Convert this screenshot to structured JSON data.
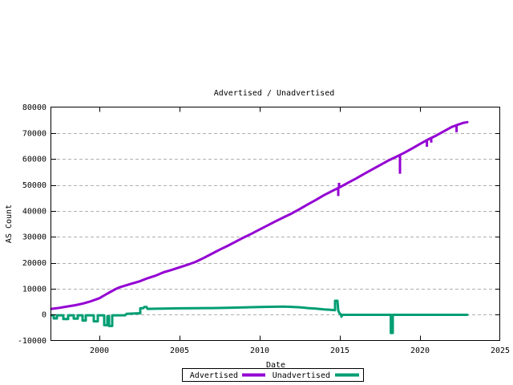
{
  "chart_data": {
    "type": "line",
    "title": "Advertised / Unadvertised",
    "xlabel": "Date",
    "ylabel": "AS Count",
    "xlim": [
      1997,
      2025
    ],
    "ylim": [
      -10000,
      80000
    ],
    "grid": "horizontal-dashed",
    "grid_color": "#b0b0b0",
    "border_color": "#000000",
    "legend_position": "bottom-center",
    "x_ticks": [
      {
        "value": 2000,
        "label": "2000"
      },
      {
        "value": 2005,
        "label": "2005"
      },
      {
        "value": 2010,
        "label": "2010"
      },
      {
        "value": 2015,
        "label": "2015"
      },
      {
        "value": 2020,
        "label": "2020"
      },
      {
        "value": 2025,
        "label": "2025"
      }
    ],
    "y_ticks": [
      {
        "value": -10000,
        "label": "-10000"
      },
      {
        "value": 0,
        "label": "0"
      },
      {
        "value": 10000,
        "label": "10000"
      },
      {
        "value": 20000,
        "label": "20000"
      },
      {
        "value": 30000,
        "label": "30000"
      },
      {
        "value": 40000,
        "label": "40000"
      },
      {
        "value": 50000,
        "label": "50000"
      },
      {
        "value": 60000,
        "label": "60000"
      },
      {
        "value": 70000,
        "label": "70000"
      },
      {
        "value": 80000,
        "label": "80000"
      }
    ],
    "series": [
      {
        "name": "Unadvertised",
        "color": "#009e73",
        "points": [
          [
            1997.0,
            -300
          ],
          [
            1997.15,
            -300
          ],
          [
            1997.15,
            -1500
          ],
          [
            1997.35,
            -1500
          ],
          [
            1997.35,
            -300
          ],
          [
            1997.75,
            -300
          ],
          [
            1997.75,
            -1700
          ],
          [
            1998.05,
            -1700
          ],
          [
            1998.05,
            -300
          ],
          [
            1998.4,
            -300
          ],
          [
            1998.4,
            -1600
          ],
          [
            1998.65,
            -1600
          ],
          [
            1998.65,
            -300
          ],
          [
            1998.95,
            -300
          ],
          [
            1998.95,
            -2300
          ],
          [
            1999.15,
            -2300
          ],
          [
            1999.15,
            -300
          ],
          [
            1999.65,
            -300
          ],
          [
            1999.65,
            -2600
          ],
          [
            1999.9,
            -2600
          ],
          [
            1999.9,
            -300
          ],
          [
            2000.3,
            -300
          ],
          [
            2000.3,
            -4100
          ],
          [
            2000.5,
            -4100
          ],
          [
            2000.5,
            -700
          ],
          [
            2000.6,
            -700
          ],
          [
            2000.6,
            -4400
          ],
          [
            2000.8,
            -4400
          ],
          [
            2000.8,
            -300
          ],
          [
            2001.6,
            -300
          ],
          [
            2001.7,
            300
          ],
          [
            2002.4,
            500
          ],
          [
            2002.55,
            500
          ],
          [
            2002.55,
            2400
          ],
          [
            2002.75,
            2500
          ],
          [
            2002.8,
            2900
          ],
          [
            2002.95,
            2900
          ],
          [
            2003.0,
            2200
          ],
          [
            2003.5,
            2250
          ],
          [
            2004,
            2300
          ],
          [
            2005,
            2400
          ],
          [
            2006,
            2450
          ],
          [
            2007,
            2500
          ],
          [
            2008,
            2600
          ],
          [
            2009,
            2750
          ],
          [
            2010,
            2900
          ],
          [
            2010.7,
            3000
          ],
          [
            2011.5,
            3050
          ],
          [
            2012,
            2950
          ],
          [
            2012.5,
            2800
          ],
          [
            2013,
            2500
          ],
          [
            2013.5,
            2300
          ],
          [
            2014,
            2000
          ],
          [
            2014.4,
            1800
          ],
          [
            2014.7,
            1700
          ],
          [
            2014.7,
            5300
          ],
          [
            2014.85,
            5300
          ],
          [
            2014.9,
            1500
          ],
          [
            2015.0,
            200
          ],
          [
            2015.05,
            200
          ],
          [
            2015.1,
            -800
          ],
          [
            2015.15,
            -100
          ],
          [
            2016,
            -100
          ],
          [
            2017,
            -100
          ],
          [
            2018.18,
            -100
          ],
          [
            2018.18,
            -7100
          ],
          [
            2018.3,
            -7100
          ],
          [
            2018.3,
            -100
          ],
          [
            2019,
            -100
          ],
          [
            2020,
            -100
          ],
          [
            2021,
            -100
          ],
          [
            2022,
            -100
          ],
          [
            2022.95,
            -100
          ]
        ],
        "spikes": []
      },
      {
        "name": "Advertised",
        "color": "#9400d3",
        "points": [
          [
            1997.0,
            2200
          ],
          [
            1997.5,
            2600
          ],
          [
            1998,
            3100
          ],
          [
            1998.5,
            3600
          ],
          [
            1999,
            4300
          ],
          [
            1999.5,
            5200
          ],
          [
            2000,
            6300
          ],
          [
            2000.5,
            8100
          ],
          [
            2001,
            9800
          ],
          [
            2001.3,
            10600
          ],
          [
            2002,
            11900
          ],
          [
            2002.5,
            12800
          ],
          [
            2003,
            14000
          ],
          [
            2003.5,
            15000
          ],
          [
            2004,
            16300
          ],
          [
            2004.5,
            17200
          ],
          [
            2005,
            18200
          ],
          [
            2005.5,
            19200
          ],
          [
            2006,
            20300
          ],
          [
            2006.5,
            21800
          ],
          [
            2007,
            23400
          ],
          [
            2007.5,
            25000
          ],
          [
            2008,
            26500
          ],
          [
            2008.5,
            28100
          ],
          [
            2009,
            29700
          ],
          [
            2009.5,
            31200
          ],
          [
            2010,
            32800
          ],
          [
            2010.5,
            34400
          ],
          [
            2011,
            36000
          ],
          [
            2011.5,
            37500
          ],
          [
            2012,
            39000
          ],
          [
            2012.5,
            40700
          ],
          [
            2013,
            42500
          ],
          [
            2013.5,
            44200
          ],
          [
            2014,
            46000
          ],
          [
            2014.5,
            47600
          ],
          [
            2015,
            49100
          ],
          [
            2015.5,
            50800
          ],
          [
            2016,
            52400
          ],
          [
            2016.5,
            54200
          ],
          [
            2017,
            55900
          ],
          [
            2017.5,
            57600
          ],
          [
            2018,
            59300
          ],
          [
            2018.5,
            60800
          ],
          [
            2019,
            62300
          ],
          [
            2019.5,
            64000
          ],
          [
            2020,
            65800
          ],
          [
            2020.5,
            67500
          ],
          [
            2021,
            69000
          ],
          [
            2021.5,
            70700
          ],
          [
            2022,
            72400
          ],
          [
            2022.4,
            73300
          ],
          [
            2022.7,
            73900
          ],
          [
            2022.95,
            74200
          ]
        ],
        "spikes": [
          [
            2014.9,
            48900,
            45700
          ],
          [
            2014.95,
            49000,
            50800
          ],
          [
            2018.75,
            61400,
            54300
          ],
          [
            2020.43,
            67300,
            64700
          ],
          [
            2020.7,
            67900,
            66300
          ],
          [
            2022.28,
            73200,
            70300
          ]
        ]
      }
    ],
    "legend": {
      "entries": [
        "Advertised",
        "Unadvertised"
      ]
    }
  }
}
